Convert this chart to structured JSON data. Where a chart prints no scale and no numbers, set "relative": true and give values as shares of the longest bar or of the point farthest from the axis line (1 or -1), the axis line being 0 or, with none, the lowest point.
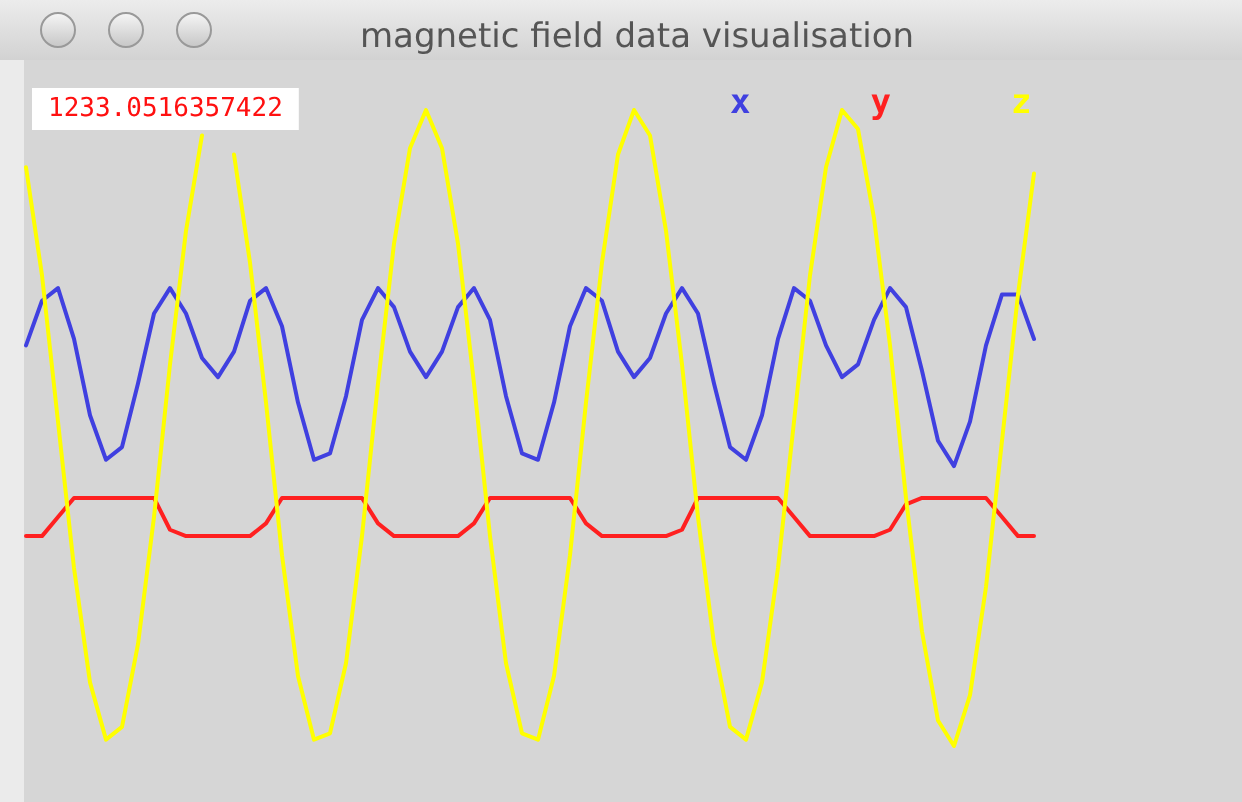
{
  "chart_data": {
    "type": "line",
    "title": "magnetic field data visualisation",
    "annotations": [
      "1233.0516357422"
    ],
    "relative": true,
    "grid": false,
    "legend": "top right",
    "line_style": "solid",
    "categories": [
      null,
      null,
      null,
      null,
      null,
      null,
      null,
      null,
      null,
      null,
      null,
      null,
      null,
      null,
      null,
      null,
      null,
      null,
      null,
      null,
      null,
      null,
      null,
      null,
      null,
      null,
      null,
      null,
      null,
      null,
      null,
      null,
      null,
      null,
      null,
      null,
      null,
      null,
      null,
      null,
      null,
      null,
      null,
      null,
      null,
      null,
      null,
      null,
      null,
      null,
      null,
      null,
      null,
      null,
      null,
      null,
      null,
      null,
      null,
      null,
      null,
      null,
      null,
      null
    ],
    "series": [
      {
        "name": "x",
        "color": "#4040e0",
        "values": [
          0.63,
          0.7,
          0.72,
          0.64,
          0.52,
          0.45,
          0.47,
          0.57,
          0.68,
          0.72,
          0.68,
          0.61,
          0.58,
          0.62,
          0.7,
          0.72,
          0.66,
          0.54,
          0.45,
          0.46,
          0.55,
          0.67,
          0.72,
          0.69,
          0.62,
          0.58,
          0.62,
          0.69,
          0.72,
          0.67,
          0.55,
          0.46,
          0.45,
          0.54,
          0.66,
          0.72,
          0.7,
          0.62,
          0.58,
          0.61,
          0.68,
          0.72,
          0.68,
          0.57,
          0.47,
          0.45,
          0.52,
          0.64,
          0.72,
          0.7,
          0.63,
          0.58,
          0.6,
          0.67,
          0.72,
          0.69,
          0.59,
          0.48,
          0.44,
          0.51,
          0.63,
          0.71,
          0.71,
          0.64
        ]
      },
      {
        "name": "y",
        "color": "#ff2020",
        "values": [
          0.33,
          0.33,
          0.36,
          0.39,
          0.39,
          0.39,
          0.39,
          0.39,
          0.39,
          0.34,
          0.33,
          0.33,
          0.33,
          0.33,
          0.33,
          0.35,
          0.39,
          0.39,
          0.39,
          0.39,
          0.39,
          0.39,
          0.35,
          0.33,
          0.33,
          0.33,
          0.33,
          0.33,
          0.35,
          0.39,
          0.39,
          0.39,
          0.39,
          0.39,
          0.39,
          0.35,
          0.33,
          0.33,
          0.33,
          0.33,
          0.33,
          0.34,
          0.39,
          0.39,
          0.39,
          0.39,
          0.39,
          0.39,
          0.36,
          0.33,
          0.33,
          0.33,
          0.33,
          0.33,
          0.34,
          0.38,
          0.39,
          0.39,
          0.39,
          0.39,
          0.39,
          0.36,
          0.33,
          0.33
        ]
      },
      {
        "name": "z",
        "color": "#ffff00",
        "values": [
          0.91,
          0.74,
          0.51,
          0.28,
          0.1,
          0.01,
          0.03,
          0.16,
          0.36,
          0.6,
          0.81,
          0.96,
          null,
          0.93,
          0.76,
          0.54,
          0.3,
          0.11,
          0.01,
          0.02,
          0.13,
          0.33,
          0.57,
          0.79,
          0.94,
          1.0,
          0.94,
          0.79,
          0.57,
          0.33,
          0.13,
          0.02,
          0.01,
          0.11,
          0.3,
          0.54,
          0.76,
          0.93,
          1.0,
          0.96,
          0.81,
          0.6,
          0.36,
          0.16,
          0.03,
          0.01,
          0.1,
          0.28,
          0.51,
          0.74,
          0.91,
          1.0,
          0.97,
          0.83,
          0.63,
          0.39,
          0.18,
          0.04,
          0.0,
          0.08,
          0.25,
          0.48,
          0.71,
          0.9
        ]
      }
    ]
  }
}
